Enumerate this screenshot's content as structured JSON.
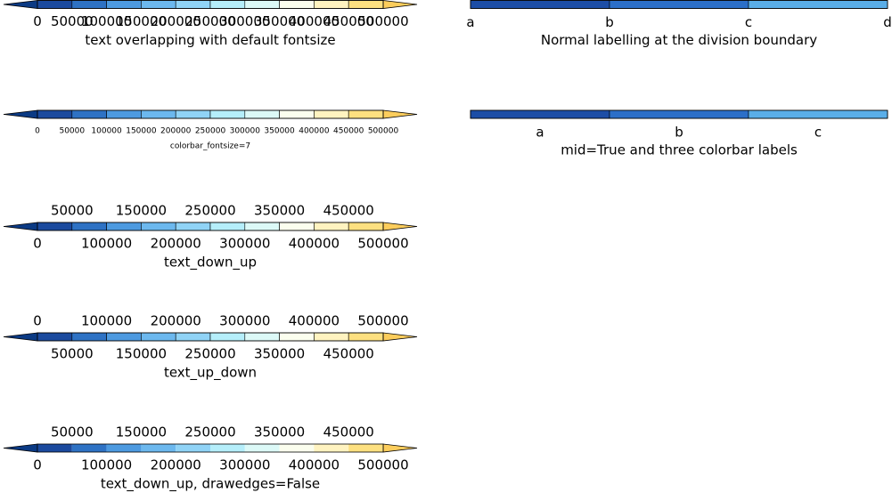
{
  "chart_data": [
    {
      "type": "colorbar",
      "xlabel": "text overlapping with default fontsize",
      "xlim": [
        0,
        500000
      ],
      "xticks": [
        0,
        50000,
        100000,
        150000,
        200000,
        250000,
        300000,
        350000,
        400000,
        450000,
        500000
      ],
      "tick_layout": "down",
      "text_size": "normal",
      "drawedges": true,
      "under_color": "#0b3a84",
      "over_color": "#fccd5c",
      "colors": [
        "#1b4a9e",
        "#2e72c4",
        "#4d9ae0",
        "#6cb8ee",
        "#90d3f6",
        "#b5eefa",
        "#dcf9f7",
        "#fbfeee",
        "#fff3c0",
        "#fde080"
      ]
    },
    {
      "type": "colorbar",
      "xlabel": "colorbar_fontsize=7",
      "xlim": [
        0,
        500000
      ],
      "xticks": [
        0,
        50000,
        100000,
        150000,
        200000,
        250000,
        300000,
        350000,
        400000,
        450000,
        500000
      ],
      "tick_layout": "down",
      "text_size": "small",
      "drawedges": true,
      "under_color": "#0b3a84",
      "over_color": "#fccd5c",
      "colors": [
        "#1b4a9e",
        "#2e72c4",
        "#4d9ae0",
        "#6cb8ee",
        "#90d3f6",
        "#b5eefa",
        "#dcf9f7",
        "#fbfeee",
        "#fff3c0",
        "#fde080"
      ]
    },
    {
      "type": "colorbar",
      "xlabel": "text_down_up",
      "xlim": [
        0,
        500000
      ],
      "xticks": [
        0,
        50000,
        100000,
        150000,
        200000,
        250000,
        300000,
        350000,
        400000,
        450000,
        500000
      ],
      "tick_layout": "down-up",
      "text_size": "normal",
      "drawedges": true,
      "under_color": "#0b3a84",
      "over_color": "#fccd5c",
      "colors": [
        "#1b4a9e",
        "#2e72c4",
        "#4d9ae0",
        "#6cb8ee",
        "#90d3f6",
        "#b5eefa",
        "#dcf9f7",
        "#fbfeee",
        "#fff3c0",
        "#fde080"
      ]
    },
    {
      "type": "colorbar",
      "xlabel": "text_up_down",
      "xlim": [
        0,
        500000
      ],
      "xticks": [
        0,
        50000,
        100000,
        150000,
        200000,
        250000,
        300000,
        350000,
        400000,
        450000,
        500000
      ],
      "tick_layout": "up-down",
      "text_size": "normal",
      "drawedges": true,
      "under_color": "#0b3a84",
      "over_color": "#fccd5c",
      "colors": [
        "#1b4a9e",
        "#2e72c4",
        "#4d9ae0",
        "#6cb8ee",
        "#90d3f6",
        "#b5eefa",
        "#dcf9f7",
        "#fbfeee",
        "#fff3c0",
        "#fde080"
      ]
    },
    {
      "type": "colorbar",
      "xlabel": "text_down_up, drawedges=False",
      "xlim": [
        0,
        500000
      ],
      "xticks": [
        0,
        50000,
        100000,
        150000,
        200000,
        250000,
        300000,
        350000,
        400000,
        450000,
        500000
      ],
      "tick_layout": "down-up",
      "text_size": "normal",
      "drawedges": false,
      "under_color": "#0b3a84",
      "over_color": "#fccd5c",
      "colors": [
        "#1b4a9e",
        "#2e72c4",
        "#4d9ae0",
        "#6cb8ee",
        "#90d3f6",
        "#b5eefa",
        "#dcf9f7",
        "#fbfeee",
        "#fff3c0",
        "#fde080"
      ]
    },
    {
      "type": "category-colorbar",
      "xlabel": "Normal labelling at the division boundary",
      "categories": [
        "a",
        "b",
        "c",
        "d"
      ],
      "label_position": "boundary",
      "drawedges": true,
      "colors": [
        "#1d4ea6",
        "#2c6fc8",
        "#5aaee8"
      ]
    },
    {
      "type": "category-colorbar",
      "xlabel": "mid=True and three colorbar labels",
      "categories": [
        "a",
        "b",
        "c"
      ],
      "label_position": "mid",
      "drawedges": true,
      "colors": [
        "#1d4ea6",
        "#2c6fc8",
        "#5aaee8"
      ]
    }
  ]
}
